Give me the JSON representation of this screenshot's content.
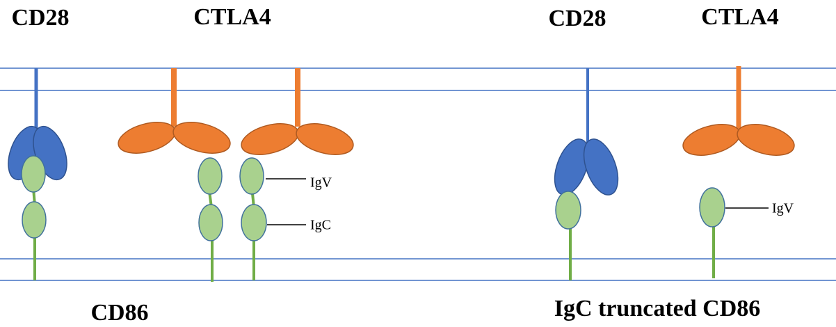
{
  "labels": {
    "top": [
      "CD28",
      "CTLA4",
      "CD28",
      "CTLA4"
    ],
    "bottom": [
      "CD86",
      "IgC truncated CD86"
    ]
  },
  "domains": [
    "IgV",
    "IgC",
    "IgV"
  ]
}
